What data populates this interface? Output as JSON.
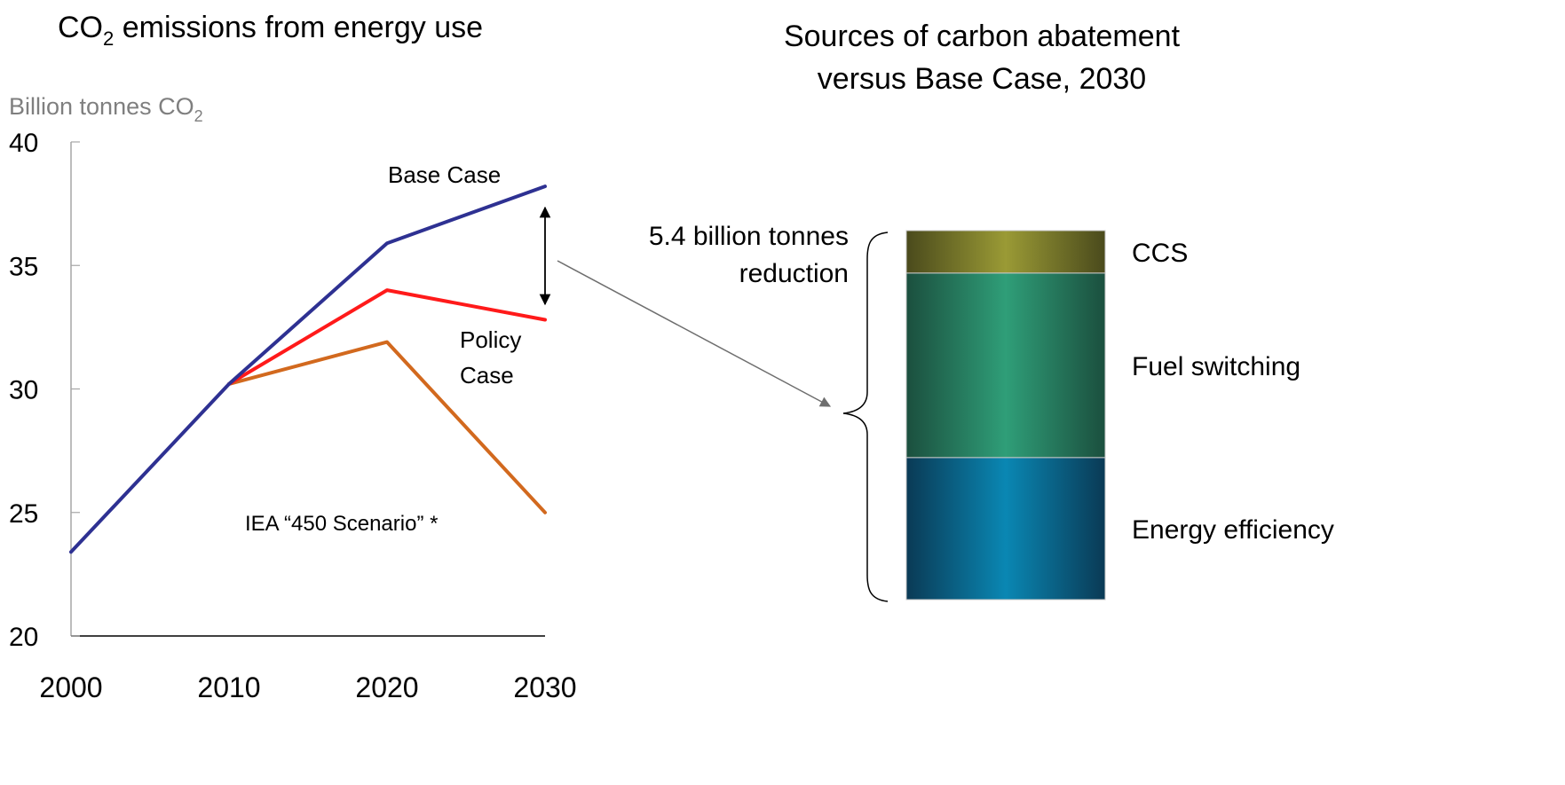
{
  "left_chart": {
    "title_main": "CO",
    "title_sub": "2",
    "title_rest": " emissions from energy use",
    "ylabel_main": "Billion tonnes CO",
    "ylabel_sub": "2"
  },
  "right_chart": {
    "title_line1": "Sources of carbon abatement",
    "title_line2": "versus Base Case, 2030",
    "reduction_line1": "5.4 billion tonnes",
    "reduction_line2": "reduction"
  },
  "chart_data": [
    {
      "type": "line",
      "x": [
        2000,
        2010,
        2020,
        2030
      ],
      "xlim": [
        2000,
        2030
      ],
      "ylim": [
        20,
        40
      ],
      "yticks": [
        40,
        35,
        30,
        25,
        20
      ],
      "xticks": [
        2000,
        2010,
        2020,
        2030
      ],
      "grid": false,
      "series": [
        {
          "name": "Base Case",
          "color": "#2e3192",
          "points": [
            [
              2000,
              23.4
            ],
            [
              2010,
              30.2
            ],
            [
              2020,
              35.9
            ],
            [
              2030,
              38.2
            ]
          ]
        },
        {
          "name": "Policy Case",
          "color": "#ff1a1a",
          "points": [
            [
              2010,
              30.2
            ],
            [
              2020,
              34.0
            ],
            [
              2030,
              32.8
            ]
          ]
        },
        {
          "name": "IEA “450 Scenario” *",
          "color": "#d2691e",
          "points": [
            [
              2010,
              30.2
            ],
            [
              2020,
              31.9
            ],
            [
              2030,
              25.0
            ]
          ]
        }
      ],
      "labels": {
        "base": "Base Case",
        "policy_line1": "Policy",
        "policy_line2": "Case",
        "iea": "IEA “450 Scenario” *"
      }
    },
    {
      "type": "bar",
      "stacked": true,
      "total": 5.4,
      "unit": "billion tonnes",
      "segments": [
        {
          "name": "Energy efficiency",
          "share": 0.385,
          "color": "#0a87b3"
        },
        {
          "name": "Fuel switching",
          "share": 0.5,
          "color": "#2f9e78"
        },
        {
          "name": "CCS",
          "share": 0.115,
          "color": "#9a9a35"
        }
      ]
    }
  ]
}
